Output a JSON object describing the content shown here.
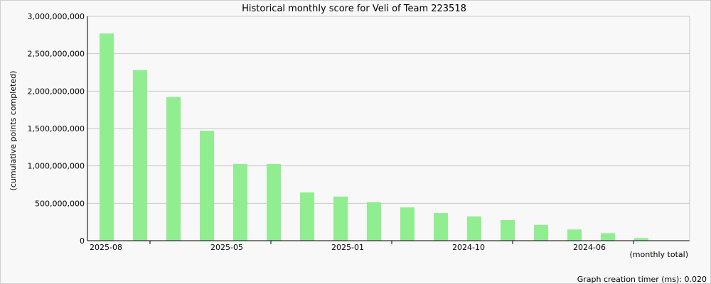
{
  "chart_data": {
    "type": "bar",
    "title": "Historical monthly score for Veli of Team 223518",
    "ylabel": "(cumulative points completed)",
    "xlabel": "(monthly total)",
    "ylim": [
      0,
      3000000000
    ],
    "y_ticks": [
      "0",
      "500,000,000",
      "1,000,000,000",
      "1,500,000,000",
      "2,000,000,000",
      "2,500,000,000",
      "3,000,000,000"
    ],
    "x_tick_labels": [
      "2025-08",
      "2025-05",
      "2025-01",
      "2024-10",
      "2024-06"
    ],
    "values": [
      2770000000,
      2280000000,
      1920000000,
      1470000000,
      1025000000,
      1025000000,
      645000000,
      590000000,
      515000000,
      445000000,
      370000000,
      325000000,
      275000000,
      210000000,
      150000000,
      100000000,
      35000000
    ],
    "grid": true,
    "bar_color": "#90ee90"
  },
  "footer": {
    "timer_text": "Graph creation timer (ms): 0.020"
  }
}
